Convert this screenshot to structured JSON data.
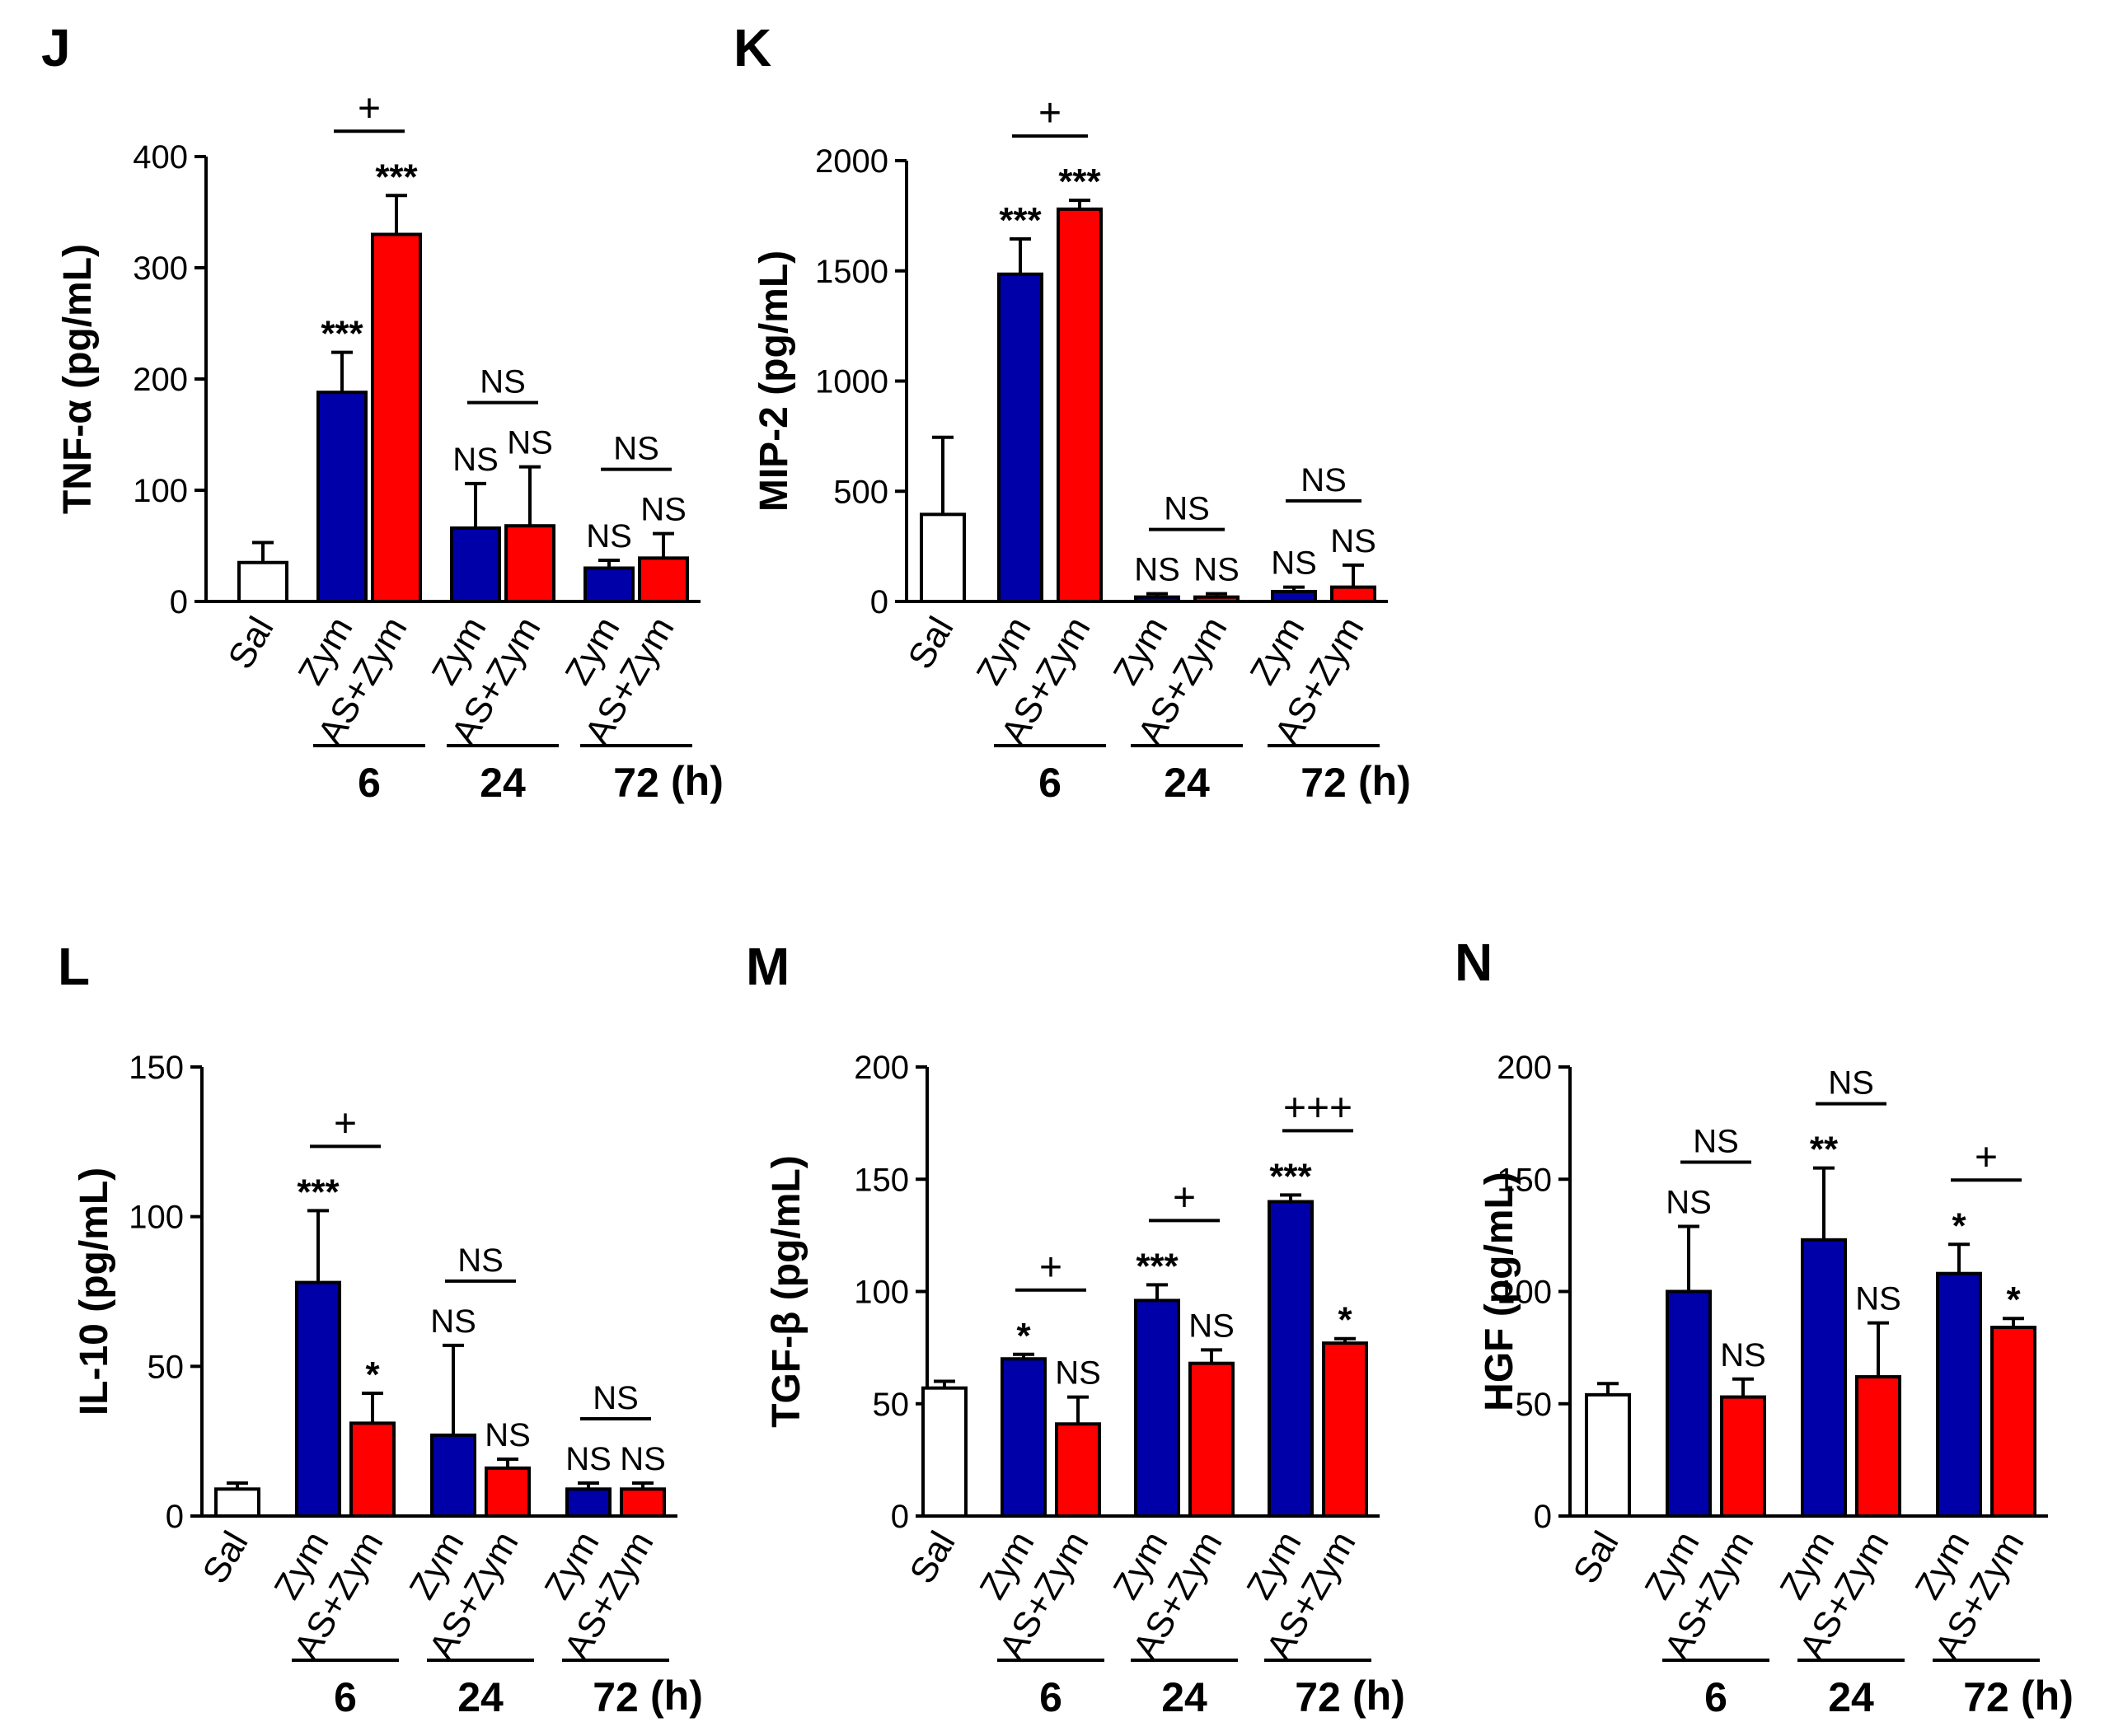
{
  "figure": {
    "colors": {
      "saline": "#ffffff",
      "zym": "#0000a8",
      "as_zym": "#ff0000",
      "outline": "#000000"
    }
  },
  "chart_data": [
    {
      "type": "bar",
      "panel": "J",
      "ylabel": "TNF-α (pg/mL)",
      "ylim": [
        0,
        400
      ],
      "yticks": [
        0,
        100,
        200,
        300,
        400
      ],
      "categories": [
        "Sal",
        "Zym",
        "AS+Zym",
        "Zym",
        "AS+Zym",
        "Zym",
        "AS+Zym"
      ],
      "groups": [
        "sal",
        "zym",
        "as",
        "zym",
        "as",
        "zym",
        "as"
      ],
      "values": [
        35,
        188,
        330,
        66,
        68,
        30,
        39
      ],
      "errors": [
        18,
        36,
        35,
        40,
        53,
        7,
        22
      ],
      "annotations": [
        "",
        "***",
        "***",
        "NS",
        "NS",
        "NS",
        "NS"
      ],
      "comparisons": [
        {
          "from": 1,
          "to": 2,
          "label": "+"
        },
        {
          "from": 3,
          "to": 4,
          "label": "NS"
        },
        {
          "from": 5,
          "to": 6,
          "label": "NS"
        }
      ],
      "time_groups": [
        {
          "label": "6",
          "from": 1,
          "to": 2
        },
        {
          "label": "24",
          "from": 3,
          "to": 4
        },
        {
          "label": "72",
          "from": 5,
          "to": 6
        }
      ],
      "time_unit": "(h)"
    },
    {
      "type": "bar",
      "panel": "K",
      "ylabel": "MIP-2 (pg/mL)",
      "ylim": [
        0,
        2000
      ],
      "yticks": [
        0,
        500,
        1000,
        1500,
        2000
      ],
      "categories": [
        "Sal",
        "Zym",
        "AS+Zym",
        "Zym",
        "AS+Zym",
        "Zym",
        "AS+Zym"
      ],
      "groups": [
        "sal",
        "zym",
        "as",
        "zym",
        "as",
        "zym",
        "as"
      ],
      "values": [
        395,
        1485,
        1780,
        20,
        20,
        45,
        65
      ],
      "errors": [
        350,
        160,
        40,
        15,
        15,
        20,
        100
      ],
      "annotations": [
        "",
        "***",
        "***",
        "NS",
        "NS",
        "NS",
        "NS"
      ],
      "comparisons": [
        {
          "from": 1,
          "to": 2,
          "label": "+"
        },
        {
          "from": 3,
          "to": 4,
          "label": "NS"
        },
        {
          "from": 5,
          "to": 6,
          "label": "NS"
        }
      ],
      "time_groups": [
        {
          "label": "6",
          "from": 1,
          "to": 2
        },
        {
          "label": "24",
          "from": 3,
          "to": 4
        },
        {
          "label": "72",
          "from": 5,
          "to": 6
        }
      ],
      "time_unit": "(h)"
    },
    {
      "type": "bar",
      "panel": "L",
      "ylabel": "IL-10 (pg/mL)",
      "ylim": [
        0,
        150
      ],
      "yticks": [
        0,
        50,
        100,
        150
      ],
      "categories": [
        "Sal",
        "Zym",
        "AS+Zym",
        "Zym",
        "AS+Zym",
        "Zym",
        "AS+Zym"
      ],
      "groups": [
        "sal",
        "zym",
        "as",
        "zym",
        "as",
        "zym",
        "as"
      ],
      "values": [
        9,
        78,
        31,
        27,
        16,
        9,
        9
      ],
      "errors": [
        2,
        24,
        10,
        30,
        3,
        2,
        2
      ],
      "annotations": [
        "",
        "***",
        "*",
        "NS",
        "NS",
        "NS",
        "NS"
      ],
      "comparisons": [
        {
          "from": 1,
          "to": 2,
          "label": "+"
        },
        {
          "from": 3,
          "to": 4,
          "label": "NS"
        },
        {
          "from": 5,
          "to": 6,
          "label": "NS"
        }
      ],
      "time_groups": [
        {
          "label": "6",
          "from": 1,
          "to": 2
        },
        {
          "label": "24",
          "from": 3,
          "to": 4
        },
        {
          "label": "72",
          "from": 5,
          "to": 6
        }
      ],
      "time_unit": "(h)"
    },
    {
      "type": "bar",
      "panel": "M",
      "ylabel": "TGF-β (pg/mL)",
      "ylim": [
        0,
        200
      ],
      "yticks": [
        0,
        50,
        100,
        150,
        200
      ],
      "categories": [
        "Sal",
        "Zym",
        "AS+Zym",
        "Zym",
        "AS+Zym",
        "Zym",
        "AS+Zym"
      ],
      "groups": [
        "sal",
        "zym",
        "as",
        "zym",
        "as",
        "zym",
        "as"
      ],
      "values": [
        57,
        70,
        41,
        96,
        68,
        140,
        77
      ],
      "errors": [
        3,
        2,
        12,
        7,
        6,
        3,
        2
      ],
      "annotations": [
        "",
        "*",
        "NS",
        "***",
        "NS",
        "***",
        "*"
      ],
      "comparisons": [
        {
          "from": 1,
          "to": 2,
          "label": "+"
        },
        {
          "from": 3,
          "to": 4,
          "label": "+"
        },
        {
          "from": 5,
          "to": 6,
          "label": "+++"
        }
      ],
      "time_groups": [
        {
          "label": "6",
          "from": 1,
          "to": 2
        },
        {
          "label": "24",
          "from": 3,
          "to": 4
        },
        {
          "label": "72",
          "from": 5,
          "to": 6
        }
      ],
      "time_unit": "(h)"
    },
    {
      "type": "bar",
      "panel": "N",
      "ylabel": "HGF (pg/mL)",
      "ylim": [
        0,
        200
      ],
      "yticks": [
        0,
        50,
        100,
        150,
        200
      ],
      "categories": [
        "Sal",
        "Zym",
        "AS+Zym",
        "Zym",
        "AS+Zym",
        "Zym",
        "AS+Zym"
      ],
      "groups": [
        "sal",
        "zym",
        "as",
        "zym",
        "as",
        "zym",
        "as"
      ],
      "values": [
        54,
        100,
        53,
        123,
        62,
        108,
        84
      ],
      "errors": [
        5,
        29,
        8,
        32,
        24,
        13,
        4
      ],
      "annotations": [
        "",
        "NS",
        "NS",
        "**",
        "NS",
        "*",
        "*"
      ],
      "comparisons": [
        {
          "from": 1,
          "to": 2,
          "label": "NS"
        },
        {
          "from": 3,
          "to": 4,
          "label": "NS"
        },
        {
          "from": 5,
          "to": 6,
          "label": "+"
        }
      ],
      "time_groups": [
        {
          "label": "6",
          "from": 1,
          "to": 2
        },
        {
          "label": "24",
          "from": 3,
          "to": 4
        },
        {
          "label": "72",
          "from": 5,
          "to": 6
        }
      ],
      "time_unit": "(h)"
    }
  ]
}
